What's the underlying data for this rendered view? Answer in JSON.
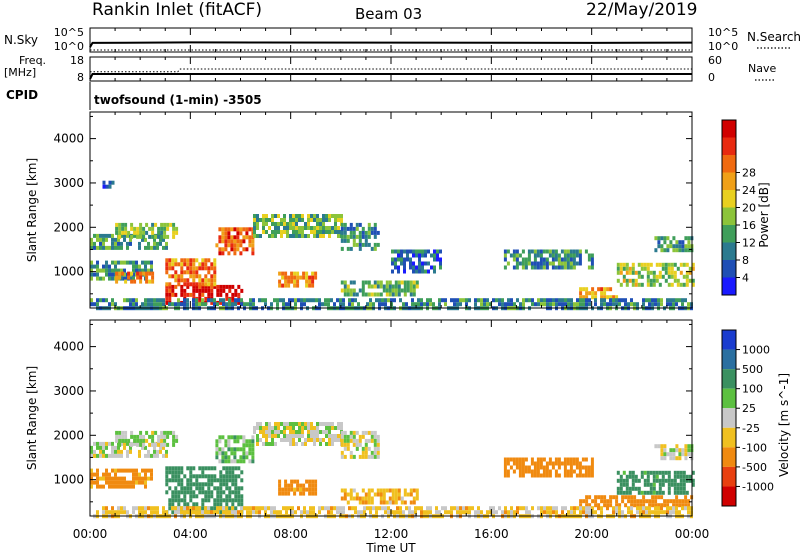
{
  "header": {
    "station": "Rankin Inlet (fitACF)",
    "beam": "Beam 03",
    "date": "22/May/2019"
  },
  "top_strip": {
    "left_label": "N.Sky",
    "right_label": "N.Search",
    "left_ticks": [
      "10^5",
      "10^0"
    ],
    "right_ticks": [
      "10^5",
      "10^0"
    ]
  },
  "freq_strip": {
    "left_label_1": "Freq.",
    "left_label_2": "[MHz]",
    "right_label": "Nave",
    "left_ticks": [
      "18",
      "8"
    ],
    "right_ticks": [
      "60",
      "0"
    ]
  },
  "cpid": {
    "label": "CPID",
    "value": "twofsound (1-min) -3505"
  },
  "power_panel": {
    "ylabel": "Slant Range [km]",
    "yticks": [
      1000,
      2000,
      3000,
      4000
    ],
    "colorbar_label": "Power [dB]",
    "colorbar_ticks": [
      "4",
      "8",
      "12",
      "16",
      "20",
      "24",
      "28"
    ],
    "colorbar_colors": [
      "#1a1aff",
      "#1f4fb5",
      "#2b7a8f",
      "#3f9e5a",
      "#8cc43a",
      "#e8d020",
      "#f0a018",
      "#f06a10",
      "#e82a10",
      "#d00000"
    ]
  },
  "velocity_panel": {
    "ylabel": "Slant Range [km]",
    "yticks": [
      1000,
      2000,
      3000,
      4000
    ],
    "colorbar_label": "Velocity [m s^-1]",
    "colorbar_ticks": [
      "1000",
      "500",
      "100",
      "25",
      "-25",
      "-100",
      "-500",
      "-1000"
    ],
    "colorbar_colors": [
      "#1a3ccf",
      "#2a6fa0",
      "#3a9060",
      "#5cc040",
      "#c8c8c8",
      "#f0c020",
      "#f08a10",
      "#e84010",
      "#d00000"
    ]
  },
  "xaxis": {
    "label": "Time UT",
    "ticks": [
      "00:00",
      "04:00",
      "08:00",
      "12:00",
      "16:00",
      "20:00",
      "00:00"
    ]
  },
  "chart_data": [
    {
      "type": "line",
      "title": "",
      "ylabel": "N.Sky",
      "x_range_hours": [
        0,
        24
      ],
      "series": [
        {
          "name": "N.Sky",
          "style": "solid",
          "x": [
            0,
            0.1,
            4,
            12,
            20,
            24
          ],
          "values": [
            5,
            60,
            80,
            70,
            60,
            70
          ]
        },
        {
          "name": "N.Search",
          "style": "dotted",
          "x": [
            0,
            24
          ],
          "values": [
            1,
            1
          ]
        }
      ],
      "ylim": [
        1,
        100000
      ],
      "scale": "log"
    },
    {
      "type": "line",
      "title": "",
      "ylabel": "Freq. [MHz]",
      "x_range_hours": [
        0,
        24
      ],
      "series": [
        {
          "name": "Freq.",
          "style": "solid",
          "x": [
            0,
            0.1,
            24
          ],
          "values": [
            8,
            10.5,
            10.5
          ]
        },
        {
          "name": "Nave",
          "style": "dotted",
          "x": [
            0,
            3.5,
            3.6,
            24
          ],
          "values": [
            22,
            22,
            30,
            30
          ]
        }
      ],
      "ylim": [
        8,
        18
      ],
      "ylim_right": [
        0,
        60
      ]
    },
    {
      "type": "heatmap",
      "title": "",
      "ylabel": "Slant Range [km]",
      "xlabel": "",
      "x_range_hours": [
        0,
        24
      ],
      "ylim": [
        180,
        4600
      ],
      "value_label": "Power [dB]",
      "regions": [
        {
          "t0": 0.0,
          "t1": 3.0,
          "r0": 1550,
          "r1": 1850,
          "value": 10
        },
        {
          "t0": 1.0,
          "t1": 3.5,
          "r0": 1800,
          "r1": 2100,
          "value": 12
        },
        {
          "t0": 0.0,
          "t1": 2.5,
          "r0": 850,
          "r1": 1250,
          "value": 9
        },
        {
          "t0": 1.0,
          "t1": 2.5,
          "r0": 800,
          "r1": 1000,
          "value": 20
        },
        {
          "t0": 3.0,
          "t1": 6.0,
          "r0": 250,
          "r1": 700,
          "value": 28
        },
        {
          "t0": 3.0,
          "t1": 5.0,
          "r0": 700,
          "r1": 1300,
          "value": 22
        },
        {
          "t0": 5.0,
          "t1": 6.5,
          "r0": 1400,
          "r1": 2000,
          "value": 24
        },
        {
          "t0": 6.5,
          "t1": 10.0,
          "r0": 1800,
          "r1": 2300,
          "value": 12
        },
        {
          "t0": 10.0,
          "t1": 11.5,
          "r0": 1500,
          "r1": 2100,
          "value": 9
        },
        {
          "t0": 7.5,
          "t1": 9.0,
          "r0": 700,
          "r1": 1000,
          "value": 20
        },
        {
          "t0": 10.0,
          "t1": 13.0,
          "r0": 500,
          "r1": 800,
          "value": 12
        },
        {
          "t0": 12.0,
          "t1": 14.0,
          "r0": 1000,
          "r1": 1500,
          "value": 6
        },
        {
          "t0": 16.5,
          "t1": 20.0,
          "r0": 1100,
          "r1": 1500,
          "value": 9
        },
        {
          "t0": 19.5,
          "t1": 21.0,
          "r0": 450,
          "r1": 650,
          "value": 20
        },
        {
          "t0": 21.0,
          "t1": 24.0,
          "r0": 700,
          "r1": 1200,
          "value": 14
        },
        {
          "t0": 22.5,
          "t1": 24.0,
          "r0": 1500,
          "r1": 1800,
          "value": 10
        },
        {
          "t0": 0.5,
          "t1": 0.9,
          "r0": 2900,
          "r1": 3050,
          "value": 6
        },
        {
          "t0": 0.0,
          "t1": 24.0,
          "r0": 180,
          "r1": 400,
          "value": 8
        }
      ]
    },
    {
      "type": "heatmap",
      "title": "",
      "ylabel": "Slant Range [km]",
      "xlabel": "Time UT",
      "x_range_hours": [
        0,
        24
      ],
      "ylim": [
        180,
        4600
      ],
      "value_label": "Velocity [m s^-1]",
      "regions": [
        {
          "t0": 0.0,
          "t1": 3.0,
          "r0": 1550,
          "r1": 1850,
          "value": 0
        },
        {
          "t0": 1.0,
          "t1": 3.5,
          "r0": 1800,
          "r1": 2100,
          "value": 10
        },
        {
          "t0": 0.0,
          "t1": 2.5,
          "r0": 850,
          "r1": 1250,
          "value": -150
        },
        {
          "t0": 3.0,
          "t1": 6.0,
          "r0": 250,
          "r1": 1300,
          "value": 200
        },
        {
          "t0": 5.0,
          "t1": 6.5,
          "r0": 1400,
          "r1": 2000,
          "value": 60
        },
        {
          "t0": 6.5,
          "t1": 10.0,
          "r0": 1800,
          "r1": 2300,
          "value": 0
        },
        {
          "t0": 10.0,
          "t1": 11.5,
          "r0": 1500,
          "r1": 2100,
          "value": 0
        },
        {
          "t0": 7.5,
          "t1": 9.0,
          "r0": 700,
          "r1": 1000,
          "value": -150
        },
        {
          "t0": 10.0,
          "t1": 13.0,
          "r0": 500,
          "r1": 800,
          "value": -80
        },
        {
          "t0": 16.5,
          "t1": 20.0,
          "r0": 1100,
          "r1": 1500,
          "value": -200
        },
        {
          "t0": 19.5,
          "t1": 24.0,
          "r0": 400,
          "r1": 650,
          "value": -400
        },
        {
          "t0": 21.0,
          "t1": 24.0,
          "r0": 700,
          "r1": 1200,
          "value": 150
        },
        {
          "t0": 22.5,
          "t1": 24.0,
          "r0": 1500,
          "r1": 1800,
          "value": 0
        },
        {
          "t0": 0.0,
          "t1": 24.0,
          "r0": 180,
          "r1": 400,
          "value": -50
        }
      ]
    }
  ]
}
